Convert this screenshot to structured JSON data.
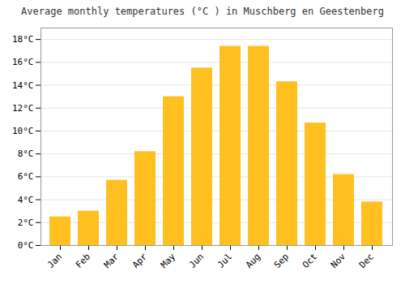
{
  "chart_data": {
    "type": "bar",
    "title": "Average monthly temperatures (°C ) in Muschberg en Geestenberg",
    "categories": [
      "Jan",
      "Feb",
      "Mar",
      "Apr",
      "May",
      "Jun",
      "Jul",
      "Aug",
      "Sep",
      "Oct",
      "Nov",
      "Dec"
    ],
    "values": [
      2.5,
      3.0,
      5.7,
      8.2,
      13.0,
      15.5,
      17.4,
      17.4,
      14.3,
      10.7,
      6.2,
      3.8
    ],
    "color": "#FFC020",
    "ylim": [
      0,
      19
    ],
    "yticks": [
      {
        "value": 0,
        "label": "0°C"
      },
      {
        "value": 2,
        "label": "2°C"
      },
      {
        "value": 4,
        "label": "4°C"
      },
      {
        "value": 6,
        "label": "6°C"
      },
      {
        "value": 8,
        "label": "8°C"
      },
      {
        "value": 10,
        "label": "10°C"
      },
      {
        "value": 12,
        "label": "12°C"
      },
      {
        "value": 14,
        "label": "14°C"
      },
      {
        "value": 16,
        "label": "16°C"
      },
      {
        "value": 18,
        "label": "18°C"
      }
    ],
    "grid": true
  }
}
